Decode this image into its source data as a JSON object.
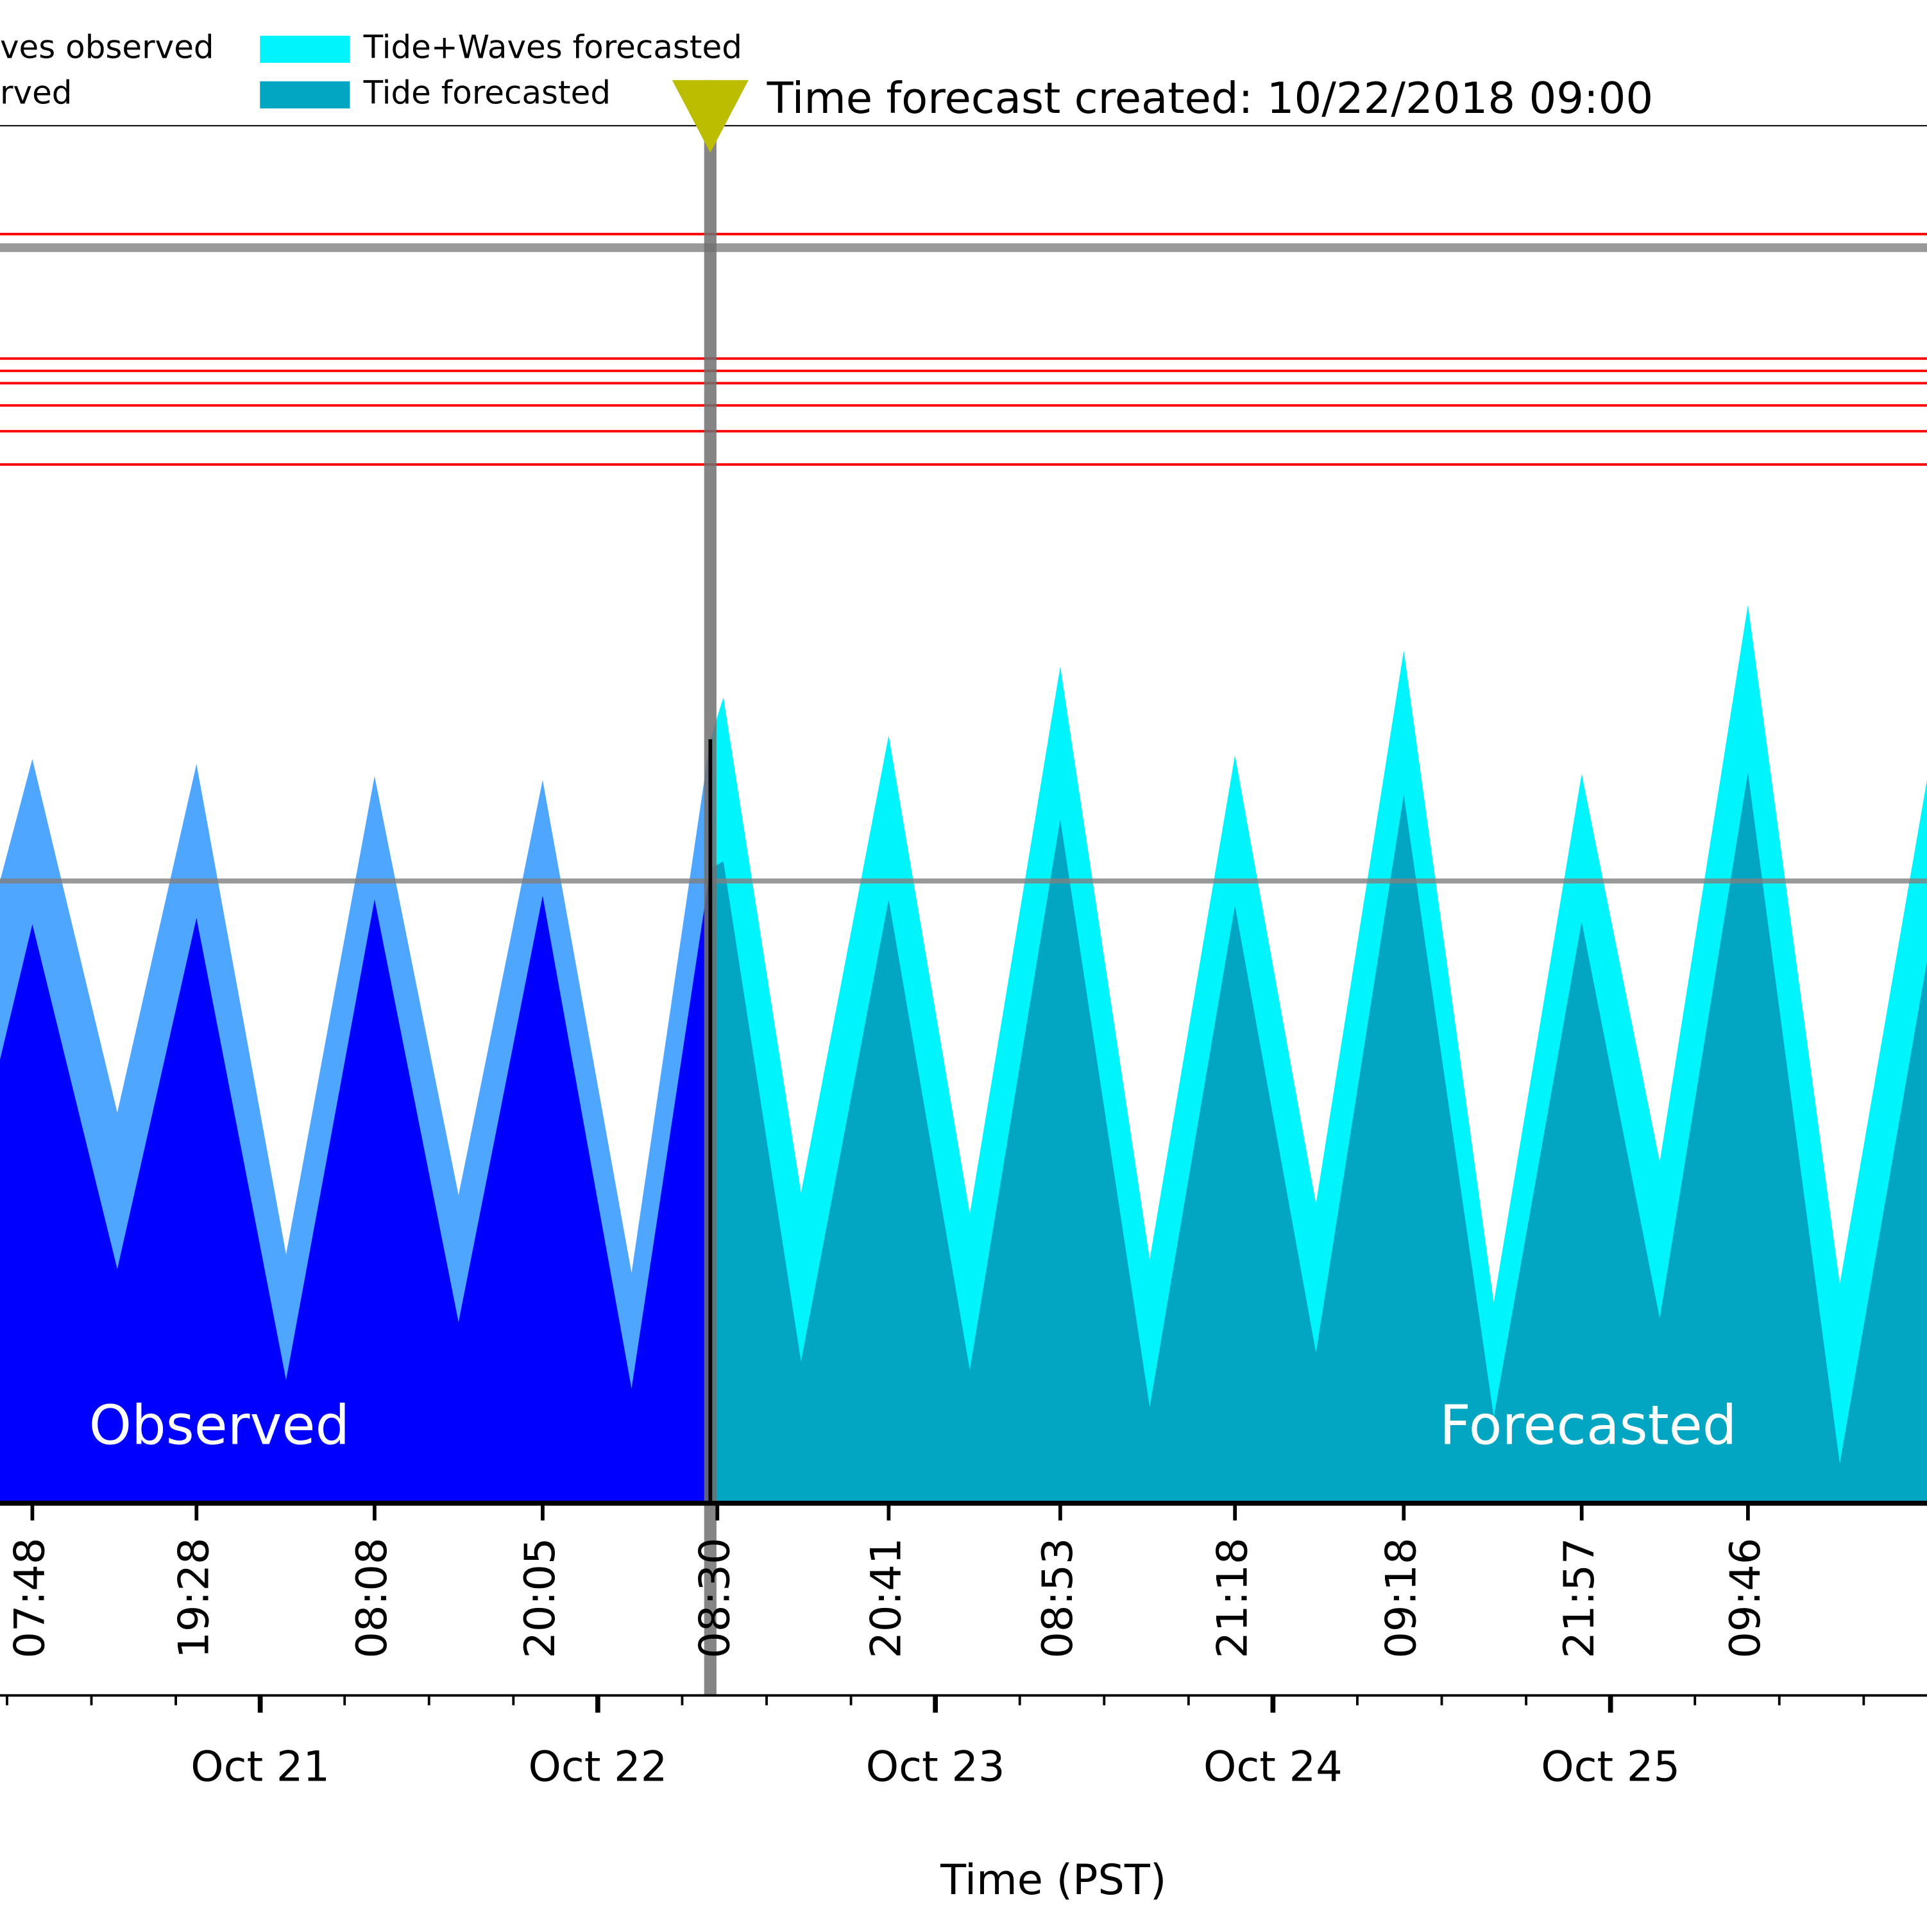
{
  "chart_data": {
    "type": "area",
    "xlabel": "Time (PST)",
    "xlim": [
      5.5,
      142.5
    ],
    "ylim": [
      0,
      11.18
    ],
    "xticks": [
      {
        "value": 24,
        "label": "Oct 21"
      },
      {
        "value": 48,
        "label": "Oct 22"
      },
      {
        "value": 72,
        "label": "Oct 23"
      },
      {
        "value": 96,
        "label": "Oct 24"
      },
      {
        "value": 120,
        "label": "Oct 25"
      }
    ],
    "xminorticks": [
      6,
      12,
      18,
      30,
      36,
      42,
      54,
      60,
      66,
      78,
      84,
      90,
      102,
      108,
      114,
      126,
      132,
      138
    ],
    "xticks_top": [
      {
        "value": 7.8,
        "label": "07:48"
      },
      {
        "value": 19.47,
        "label": "19:28"
      },
      {
        "value": 32.13,
        "label": "08:08"
      },
      {
        "value": 44.08,
        "label": "20:05"
      },
      {
        "value": 56.5,
        "label": "08:30"
      },
      {
        "value": 68.68,
        "label": "20:41"
      },
      {
        "value": 80.88,
        "label": "08:53"
      },
      {
        "value": 93.3,
        "label": "21:18"
      },
      {
        "value": 105.3,
        "label": "09:18"
      },
      {
        "value": 117.95,
        "label": "21:57"
      },
      {
        "value": 129.77,
        "label": "09:46"
      }
    ],
    "forecast_time": 56,
    "forecast_label": "Time forecast created: 10/22/2018 09:00",
    "forecast_marker_color": "#bcbd00",
    "region_labels": [
      "Observed",
      "Forecasted"
    ],
    "hlines": [
      {
        "value": 10.3,
        "color": "#ff0000"
      },
      {
        "value": 9.29,
        "color": "#ff0000"
      },
      {
        "value": 9.19,
        "color": "#ff0000"
      },
      {
        "value": 9.09,
        "color": "#ff0000"
      },
      {
        "value": 8.91,
        "color": "#ff0000"
      },
      {
        "value": 8.7,
        "color": "#ff0000"
      },
      {
        "value": 8.43,
        "color": "#ff0000"
      },
      {
        "value": 10.19,
        "color": "#999999"
      },
      {
        "value": 5.05,
        "color": "#808080"
      }
    ],
    "series": [
      {
        "name": "ves observed",
        "color": "#4fa6ff",
        "x": [
          5.5,
          7.8,
          13.84,
          19.47,
          25.84,
          32.13,
          38.1,
          44.08,
          50.4,
          56
        ],
        "values": [
          5.05,
          6.04,
          3.17,
          6.0,
          2.02,
          5.9,
          2.5,
          5.87,
          1.87,
          6.2
        ]
      },
      {
        "name": "rved",
        "color": "#0000ff",
        "x": [
          5.5,
          7.8,
          13.84,
          19.47,
          25.84,
          32.13,
          38.1,
          44.08,
          50.4,
          56
        ],
        "values": [
          3.6,
          4.7,
          1.9,
          4.75,
          1.0,
          4.9,
          1.47,
          4.93,
          0.93,
          5.15
        ]
      },
      {
        "name": "Tide+Waves forecasted",
        "color": "#00f4fc",
        "x": [
          56,
          56.93,
          62.45,
          68.68,
          74.45,
          80.88,
          87.24,
          93.3,
          99.06,
          105.3,
          111.7,
          117.95,
          123.5,
          129.77,
          136.3,
          142.5
        ],
        "values": [
          6.2,
          6.54,
          2.52,
          6.23,
          2.35,
          6.79,
          1.98,
          6.07,
          2.43,
          6.92,
          1.63,
          5.92,
          2.77,
          7.29,
          1.78,
          5.87
        ]
      },
      {
        "name": "Tide forecasted",
        "color": "#03a6c2",
        "x": [
          56,
          56.93,
          62.45,
          68.68,
          74.45,
          80.88,
          87.24,
          93.3,
          99.06,
          105.3,
          111.7,
          117.95,
          123.5,
          129.77,
          136.3,
          142.5
        ],
        "values": [
          5.15,
          5.21,
          1.15,
          4.9,
          1.08,
          5.55,
          0.78,
          4.85,
          1.22,
          5.75,
          0.7,
          4.72,
          1.5,
          5.93,
          0.32,
          4.4
        ]
      }
    ]
  }
}
